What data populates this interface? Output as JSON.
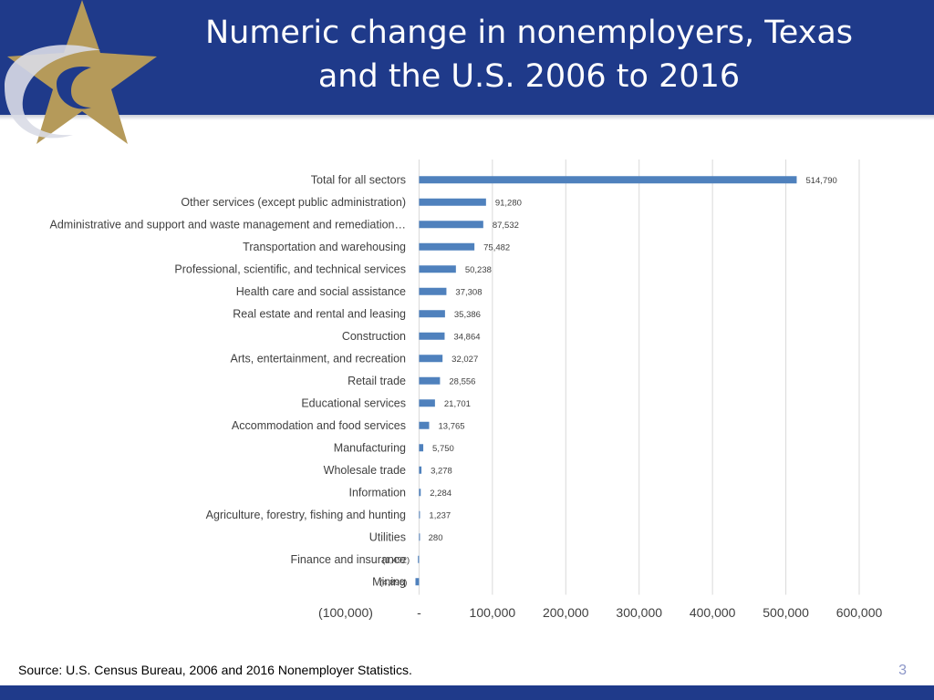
{
  "slide": {
    "title_line1": "Numeric change in nonemployers, Texas",
    "title_line2": "and the U.S. 2006 to 2016",
    "source": "Source: U.S. Census Bureau, 2006 and 2016 Nonemployer Statistics.",
    "page_number": "3"
  },
  "colors": {
    "header": "#1f3a8a",
    "bar": "#4f81bd",
    "star": "#b59a5a"
  },
  "chart_data": {
    "type": "bar",
    "orientation": "horizontal",
    "categories": [
      "Total for all sectors",
      "Other services (except public administration)",
      "Administrative and support and waste management and remediation…",
      "Transportation and warehousing",
      "Professional, scientific, and technical services",
      "Health care and social assistance",
      "Real estate and rental and leasing",
      "Construction",
      "Arts, entertainment, and recreation",
      "Retail trade",
      "Educational services",
      "Accommodation and food services",
      "Manufacturing",
      "Wholesale trade",
      "Information",
      "Agriculture, forestry, fishing and hunting",
      "Utilities",
      "Finance and insurance",
      "Mining"
    ],
    "values": [
      514790,
      91280,
      87532,
      75482,
      50238,
      37308,
      35386,
      34864,
      32027,
      28556,
      21701,
      13765,
      5750,
      3278,
      2284,
      1237,
      280,
      -1492,
      -4898
    ],
    "data_labels": [
      "514,790",
      "91,280",
      "87,532",
      "75,482",
      "50,238",
      "37,308",
      "35,386",
      "34,864",
      "32,027",
      "28,556",
      "21,701",
      "13,765",
      "5,750",
      "3,278",
      "2,284",
      "1,237",
      "280",
      "(1,492)",
      "(4,898)"
    ],
    "xlim": [
      -100000,
      600000
    ],
    "x_ticks": [
      -100000,
      0,
      100000,
      200000,
      300000,
      400000,
      500000,
      600000
    ],
    "x_tick_labels": [
      "(100,000)",
      "-",
      "100,000",
      "200,000",
      "300,000",
      "400,000",
      "500,000",
      "600,000"
    ],
    "grid": "vertical",
    "legend": "none"
  }
}
